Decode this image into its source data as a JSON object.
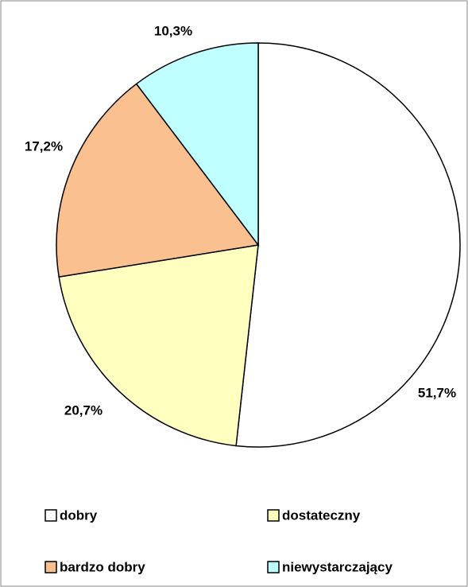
{
  "chart_data": {
    "type": "pie",
    "categories": [
      "dobry",
      "dostateczny",
      "bardzo dobry",
      "niewystarczający"
    ],
    "values": [
      51.7,
      20.7,
      17.2,
      10.3
    ],
    "value_labels": [
      "51,7%",
      "20,7%",
      "17,2%",
      "10,3%"
    ],
    "colors": [
      "#ffffff",
      "#ffffc0",
      "#fac090",
      "#c0ffff"
    ],
    "legend": "bottom"
  }
}
